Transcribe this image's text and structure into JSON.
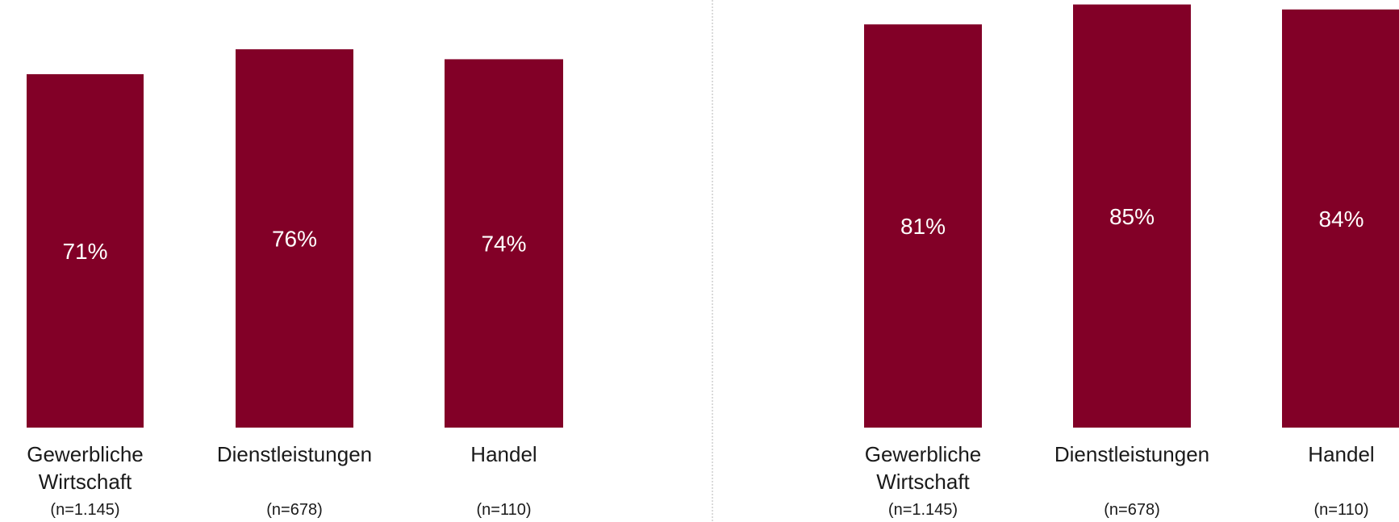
{
  "colors": {
    "bar": "#820027",
    "divider": "#b5b5b5",
    "text": "#1a1a1a",
    "bar_text": "#ffffff"
  },
  "chart_data": [
    {
      "type": "bar",
      "categories": [
        [
          "Gewerbliche",
          "Wirtschaft"
        ],
        [
          "Dienstleistungen"
        ],
        [
          "Handel"
        ]
      ],
      "sample_sizes": [
        "(n=1.145)",
        "(n=678)",
        "(n=110)"
      ],
      "values": [
        71,
        76,
        74
      ],
      "value_labels": [
        "71%",
        "76%",
        "74%"
      ],
      "unit": "%",
      "ylim": [
        0,
        100
      ],
      "grid": false,
      "legend": "none",
      "title": "",
      "xlabel": "",
      "ylabel": ""
    },
    {
      "type": "bar",
      "categories": [
        [
          "Gewerbliche",
          "Wirtschaft"
        ],
        [
          "Dienstleistungen"
        ],
        [
          "Handel"
        ]
      ],
      "sample_sizes": [
        "(n=1.145)",
        "(n=678)",
        "(n=110)"
      ],
      "values": [
        81,
        85,
        84
      ],
      "value_labels": [
        "81%",
        "85%",
        "84%"
      ],
      "unit": "%",
      "ylim": [
        0,
        100
      ],
      "grid": false,
      "legend": "none",
      "title": "",
      "xlabel": "",
      "ylabel": ""
    }
  ]
}
